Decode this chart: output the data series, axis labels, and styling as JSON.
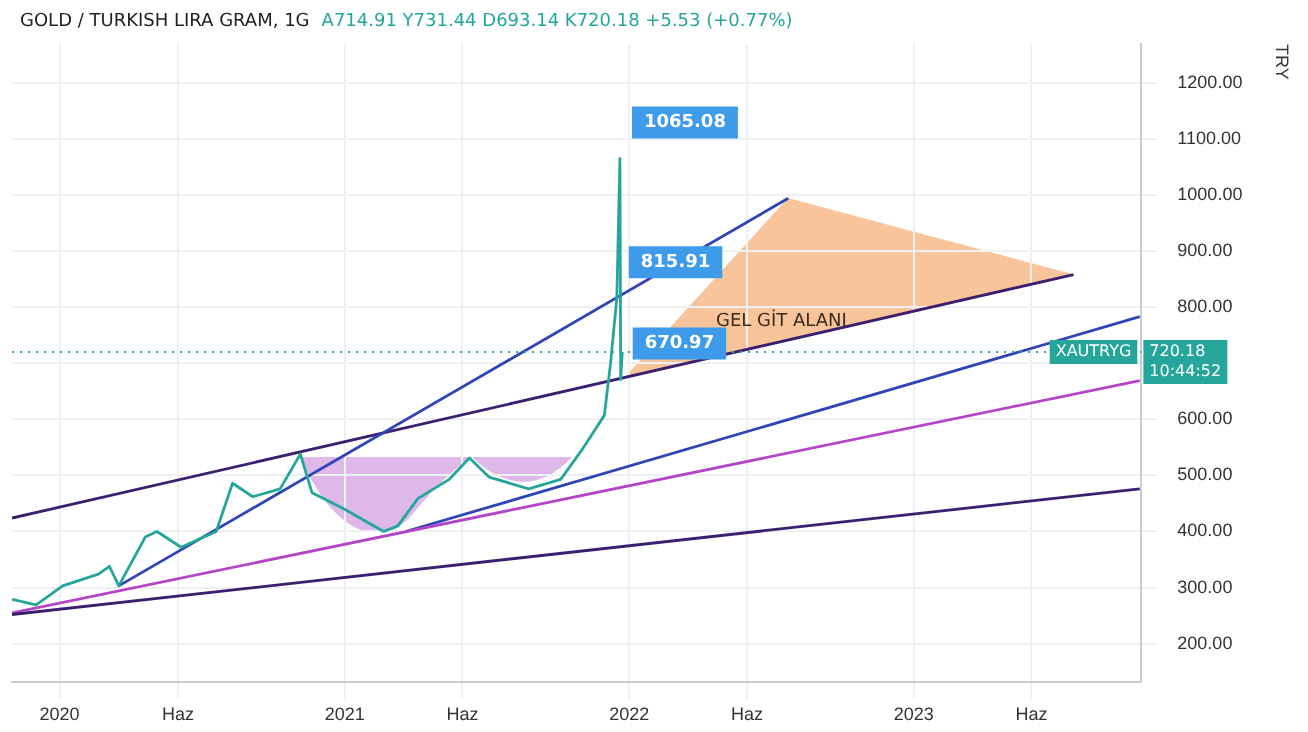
{
  "chart_data": {
    "type": "line",
    "title": "GOLD / TURKISH LIRA GRAM, 1G",
    "subtitle": "A714.91 Y731.44 D693.14 K720.18 +5.53 (+0.77%)",
    "ylabel": "TRY",
    "xlim": [
      "2019-11-01",
      "2023-10-20"
    ],
    "xticks": [
      {
        "value": "2020-01-01",
        "label": "2020"
      },
      {
        "value": "2020-06-01",
        "label": "Haz"
      },
      {
        "value": "2021-01-01",
        "label": "2021"
      },
      {
        "value": "2021-06-01",
        "label": "Haz"
      },
      {
        "value": "2022-01-01",
        "label": "2022"
      },
      {
        "value": "2022-06-01",
        "label": "Haz"
      },
      {
        "value": "2023-01-01",
        "label": "2023"
      },
      {
        "value": "2023-06-01",
        "label": "Haz"
      }
    ],
    "ylim": [
      131,
      1269
    ],
    "yticks": [
      {
        "value": 200,
        "label": "200.00"
      },
      {
        "value": 300,
        "label": "300.00"
      },
      {
        "value": 400,
        "label": "400.00"
      },
      {
        "value": 500,
        "label": "500.00"
      },
      {
        "value": 600,
        "label": "600.00"
      },
      {
        "value": 700,
        "label": null
      },
      {
        "value": 800,
        "label": "800.00"
      },
      {
        "value": 900,
        "label": "900.00"
      },
      {
        "value": 1000,
        "label": "1000.00"
      },
      {
        "value": 1100,
        "label": "1100.00"
      },
      {
        "value": 1200,
        "label": "1200.00"
      }
    ],
    "grid": true,
    "legend": false,
    "marker": "none",
    "series": [
      {
        "type": "line",
        "color": "#3b1f6e",
        "x": [
          "2019-11-01",
          "2023-07-25"
        ],
        "values": [
          424,
          858
        ]
      },
      {
        "type": "line",
        "color": "#2f45b5",
        "x": [
          "2020-03-17",
          "2022-07-24"
        ],
        "values": [
          303,
          994
        ]
      },
      {
        "type": "line",
        "color": "#2f45b5",
        "x": [
          "2021-03-20",
          "2023-10-18"
        ],
        "values": [
          400,
          783
        ]
      },
      {
        "type": "line",
        "color": "#b545c8",
        "x": [
          "2019-11-01",
          "2023-10-18"
        ],
        "values": [
          255,
          669
        ]
      },
      {
        "type": "line",
        "color": "#3b1f6e",
        "x": [
          "2019-11-01",
          "2023-10-18"
        ],
        "values": [
          252,
          476
        ]
      },
      {
        "type": "line",
        "color": "#26a69a",
        "x": [
          "2019-11-01",
          "2019-12-02",
          "2020-01-05",
          "2020-02-20",
          "2020-03-05",
          "2020-03-17",
          "2020-04-20",
          "2020-05-05",
          "2020-06-05",
          "2020-07-20",
          "2020-08-10",
          "2020-09-05",
          "2020-10-10",
          "2020-11-05",
          "2020-11-20",
          "2020-12-30",
          "2021-02-20",
          "2021-03-10",
          "2021-04-05",
          "2021-05-15",
          "2021-06-10",
          "2021-07-05",
          "2021-08-25",
          "2021-10-05",
          "2021-11-01",
          "2021-11-30",
          "2021-12-08",
          "2021-12-16",
          "2021-12-20",
          "2021-12-21",
          "2021-12-23"
        ],
        "values": [
          279,
          269,
          303,
          324,
          338,
          303,
          390,
          400,
          372,
          400,
          486,
          462,
          476,
          538,
          469,
          441,
          400,
          410,
          459,
          493,
          531,
          497,
          476,
          493,
          545,
          607,
          700,
          815.91,
          1065.08,
          670.97,
          720.18
        ]
      }
    ],
    "ref_lines": [
      {
        "axis": "y",
        "value": 720.18,
        "label": "XAUTRYG 720.18 10:44:52",
        "color": "#26a69a",
        "line_style": "dotted"
      }
    ],
    "annotations": [
      "GEL GİT ALANI",
      {
        "text": "1065.08",
        "x": "2021-12-20",
        "y": 1065.08
      },
      {
        "text": "815.91",
        "x": "2021-12-16",
        "y": 815.91
      },
      {
        "text": "670.97",
        "x": "2021-12-21",
        "y": 670.97
      }
    ]
  }
}
